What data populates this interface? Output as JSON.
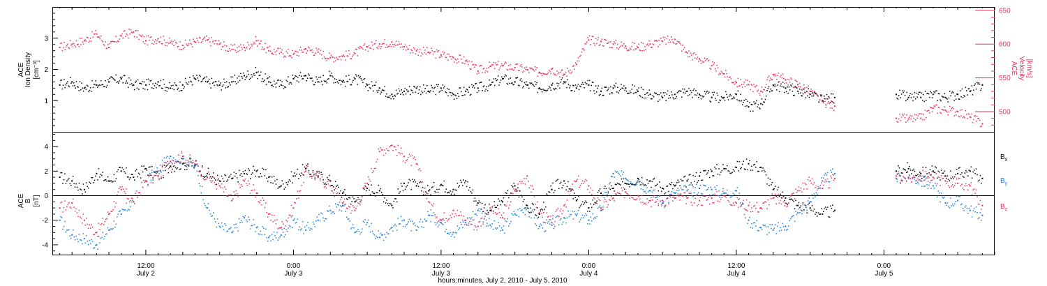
{
  "figure": {
    "x_title": "hours:minutes, July  2, 2010 - July  5, 2010",
    "x_ticks": [
      {
        "t": 12,
        "time": "12:00",
        "date": "July 2"
      },
      {
        "t": 24,
        "time": "0:00",
        "date": "July 3"
      },
      {
        "t": 36,
        "time": "12:00",
        "date": "July 3"
      },
      {
        "t": 48,
        "time": "0:00",
        "date": "July 4"
      },
      {
        "t": 60,
        "time": "12:00",
        "date": "July 4"
      },
      {
        "t": 72,
        "time": "0:00",
        "date": "July 5"
      }
    ],
    "x_range": [
      4.4,
      81.0
    ]
  },
  "colors": {
    "black": "#000000",
    "pink": "#e8305a",
    "blue": "#1a7fd8"
  },
  "chart_data": [
    {
      "type": "scatter",
      "panel": "top",
      "x_unit": "hours since 0:00 July 2, 2010",
      "left_axis": {
        "label_line1": "ACE",
        "label_line2": "Ion Density",
        "label_unit": "[cm⁻³]",
        "ylim": [
          0,
          4.0
        ],
        "ticks": [
          "1",
          "2",
          "3"
        ]
      },
      "right_axis": {
        "label_line1": "ACE",
        "label_line2": "Velocity",
        "label_unit": "[km/s]",
        "ylim": [
          470,
          655
        ],
        "ticks": [
          "500",
          "550",
          "600",
          "650"
        ]
      },
      "series": [
        {
          "axis": "left",
          "color": "black",
          "x": [
            5,
            6,
            7,
            8,
            9,
            10,
            11,
            12,
            13,
            14,
            15,
            16,
            17,
            18,
            19,
            20,
            21,
            22,
            23,
            24,
            25,
            26,
            27,
            28,
            29,
            30,
            31,
            32,
            33,
            34,
            35,
            36,
            37,
            38,
            39,
            40,
            41,
            42,
            43,
            44,
            45,
            46,
            47,
            48,
            49,
            50,
            51,
            52,
            53,
            54,
            55,
            56,
            57,
            58,
            59,
            60,
            61,
            62,
            63,
            64,
            65,
            66,
            67,
            68,
            73,
            74,
            75,
            76,
            77,
            78,
            79,
            80
          ],
          "y": [
            1.5,
            1.6,
            1.4,
            1.5,
            1.6,
            1.7,
            1.5,
            1.5,
            1.6,
            1.4,
            1.5,
            1.7,
            1.6,
            1.5,
            1.6,
            1.8,
            1.9,
            1.6,
            1.5,
            1.7,
            1.8,
            1.6,
            1.8,
            1.6,
            1.7,
            1.5,
            1.4,
            1.2,
            1.3,
            1.4,
            1.3,
            1.4,
            1.2,
            1.3,
            1.4,
            1.5,
            1.7,
            1.6,
            1.5,
            1.4,
            1.5,
            1.6,
            1.4,
            1.5,
            1.3,
            1.4,
            1.4,
            1.3,
            1.2,
            1.1,
            1.2,
            1.3,
            1.2,
            1.1,
            1.1,
            1.2,
            0.8,
            0.9,
            1.5,
            1.4,
            1.3,
            1.2,
            1.0,
            1.1,
            1.2,
            1.1,
            1.1,
            1.2,
            1.1,
            1.2,
            1.3,
            1.5
          ]
        },
        {
          "axis": "right",
          "color": "pink",
          "x": [
            5,
            6,
            7,
            8,
            9,
            10,
            11,
            12,
            13,
            14,
            15,
            16,
            17,
            18,
            19,
            20,
            21,
            22,
            23,
            24,
            25,
            26,
            27,
            28,
            29,
            30,
            31,
            32,
            33,
            34,
            35,
            36,
            37,
            38,
            39,
            40,
            41,
            42,
            43,
            44,
            45,
            46,
            47,
            48,
            49,
            50,
            51,
            52,
            53,
            54,
            55,
            56,
            57,
            58,
            59,
            60,
            61,
            62,
            63,
            64,
            65,
            66,
            67,
            68,
            73,
            74,
            75,
            76,
            77,
            78,
            79,
            80
          ],
          "y": [
            595,
            600,
            605,
            615,
            595,
            612,
            618,
            605,
            608,
            602,
            598,
            603,
            606,
            600,
            592,
            595,
            605,
            590,
            588,
            585,
            593,
            588,
            580,
            582,
            586,
            596,
            600,
            603,
            596,
            590,
            588,
            584,
            580,
            575,
            560,
            567,
            568,
            565,
            562,
            558,
            563,
            555,
            570,
            606,
            604,
            600,
            597,
            595,
            600,
            604,
            607,
            587,
            578,
            568,
            556,
            543,
            540,
            530,
            555,
            547,
            540,
            530,
            515,
            508,
            490,
            489,
            490,
            505,
            502,
            500,
            492,
            482
          ]
        }
      ]
    },
    {
      "type": "scatter",
      "panel": "bottom",
      "x_unit": "hours since 0:00 July 2, 2010",
      "left_axis": {
        "label_line1": "ACE",
        "label_line2": "B",
        "label_unit": "[nT]",
        "ylim": [
          -4.8,
          5.2
        ],
        "ticks": [
          "-4",
          "-2",
          "0",
          "2",
          "4"
        ]
      },
      "legend": [
        {
          "name": "B",
          "sub": "x",
          "color": "black"
        },
        {
          "name": "B",
          "sub": "y",
          "color": "blue"
        },
        {
          "name": "B",
          "sub": "z",
          "color": "pink"
        }
      ],
      "series": [
        {
          "name": "Bx",
          "color": "black",
          "x": [
            5,
            6,
            7,
            8,
            9,
            10,
            11,
            12,
            13,
            14,
            15,
            16,
            17,
            18,
            19,
            20,
            21,
            22,
            23,
            24,
            25,
            26,
            27,
            28,
            29,
            30,
            31,
            32,
            33,
            34,
            35,
            36,
            37,
            38,
            39,
            40,
            41,
            42,
            43,
            44,
            45,
            46,
            47,
            48,
            49,
            50,
            51,
            52,
            53,
            54,
            55,
            56,
            57,
            58,
            59,
            60,
            61,
            62,
            63,
            64,
            65,
            66,
            67,
            68,
            73,
            74,
            75,
            76,
            77,
            78,
            79,
            80
          ],
          "y": [
            1.5,
            1.2,
            0.5,
            1.8,
            1.2,
            2.0,
            1.5,
            2.2,
            1.6,
            2.4,
            2.6,
            2.5,
            1.8,
            1.2,
            1.4,
            1.8,
            2.0,
            1.5,
            0.8,
            1.6,
            2.2,
            1.6,
            1.2,
            0.2,
            -0.5,
            0.6,
            0.4,
            -0.8,
            1.0,
            0.8,
            0.4,
            0.9,
            0.5,
            1.2,
            -0.6,
            -1.2,
            -0.5,
            0.8,
            -0.8,
            -1.5,
            0.5,
            1.2,
            -0.4,
            -1.0,
            0.2,
            0.6,
            1.0,
            1.4,
            1.2,
            0.6,
            0.8,
            1.2,
            1.6,
            2.0,
            2.2,
            2.3,
            2.6,
            2.3,
            0.5,
            -0.2,
            -0.8,
            -1.0,
            -1.5,
            -1.2,
            2.0,
            2.2,
            1.8,
            2.0,
            1.6,
            1.8,
            2.0,
            1.4
          ]
        },
        {
          "name": "By",
          "color": "blue",
          "x": [
            5,
            6,
            7,
            8,
            9,
            10,
            11,
            12,
            13,
            14,
            15,
            16,
            17,
            18,
            19,
            20,
            21,
            22,
            23,
            24,
            25,
            26,
            27,
            28,
            29,
            30,
            31,
            32,
            33,
            34,
            35,
            36,
            37,
            38,
            39,
            40,
            41,
            42,
            43,
            44,
            45,
            46,
            47,
            48,
            49,
            50,
            51,
            52,
            53,
            54,
            55,
            56,
            57,
            58,
            59,
            60,
            61,
            62,
            63,
            64,
            65,
            66,
            67,
            68,
            73,
            74,
            75,
            76,
            77,
            78,
            79,
            80
          ],
          "y": [
            -2.0,
            -3.2,
            -3.5,
            -4.0,
            -2.8,
            -1.5,
            -0.5,
            1.2,
            2.0,
            3.2,
            3.0,
            2.4,
            -1.0,
            -2.5,
            -3.0,
            -1.8,
            -2.6,
            -3.4,
            -3.2,
            -2.0,
            -2.8,
            -2.0,
            -1.2,
            -0.8,
            -3.0,
            -2.2,
            -3.4,
            -2.6,
            -2.0,
            -2.8,
            -1.6,
            -2.2,
            -3.0,
            -2.2,
            -1.2,
            -2.4,
            -2.8,
            -1.5,
            -1.0,
            -2.5,
            -2.4,
            -1.8,
            -1.6,
            -2.0,
            -1.2,
            1.8,
            1.4,
            1.2,
            0.4,
            -0.6,
            0.2,
            0.4,
            0.6,
            0.5,
            0.2,
            0.4,
            -2.0,
            -2.6,
            -2.8,
            -2.5,
            -1.4,
            -0.5,
            1.2,
            1.8,
            1.4,
            1.5,
            1.2,
            0.8,
            -0.6,
            -0.4,
            -1.2,
            -1.6
          ]
        },
        {
          "name": "Bz",
          "color": "pink",
          "x": [
            5,
            6,
            7,
            8,
            9,
            10,
            11,
            12,
            13,
            14,
            15,
            16,
            17,
            18,
            19,
            20,
            21,
            22,
            23,
            24,
            25,
            26,
            27,
            28,
            29,
            30,
            31,
            32,
            33,
            34,
            35,
            36,
            37,
            38,
            39,
            40,
            41,
            42,
            43,
            44,
            45,
            46,
            47,
            48,
            49,
            50,
            51,
            52,
            53,
            54,
            55,
            56,
            57,
            58,
            59,
            60,
            61,
            62,
            63,
            64,
            65,
            66,
            67,
            68,
            73,
            74,
            75,
            76,
            77,
            78,
            79,
            80
          ],
          "y": [
            -1.0,
            -0.6,
            -2.0,
            -3.0,
            -1.5,
            0.5,
            -0.5,
            1.2,
            1.6,
            2.8,
            3.2,
            2.6,
            1.5,
            0.8,
            -0.4,
            1.2,
            0.2,
            -1.5,
            -2.6,
            -1.0,
            2.0,
            1.5,
            0.8,
            -0.6,
            -1.2,
            1.0,
            3.6,
            4.1,
            3.2,
            2.6,
            -0.5,
            -2.0,
            -1.2,
            -2.0,
            -2.5,
            -1.0,
            -1.8,
            0.4,
            1.6,
            -1.4,
            -2.2,
            -0.8,
            1.2,
            0.8,
            -1.0,
            -0.2,
            0.3,
            0.0,
            -0.4,
            -0.4,
            -0.2,
            -0.2,
            -0.4,
            -0.2,
            0.0,
            -0.6,
            -0.8,
            -1.0,
            -0.2,
            -0.6,
            0.4,
            1.2,
            0.6,
            1.4,
            1.6,
            1.4,
            1.6,
            1.5,
            1.2,
            1.0,
            0.8,
            -0.8
          ]
        }
      ]
    }
  ]
}
